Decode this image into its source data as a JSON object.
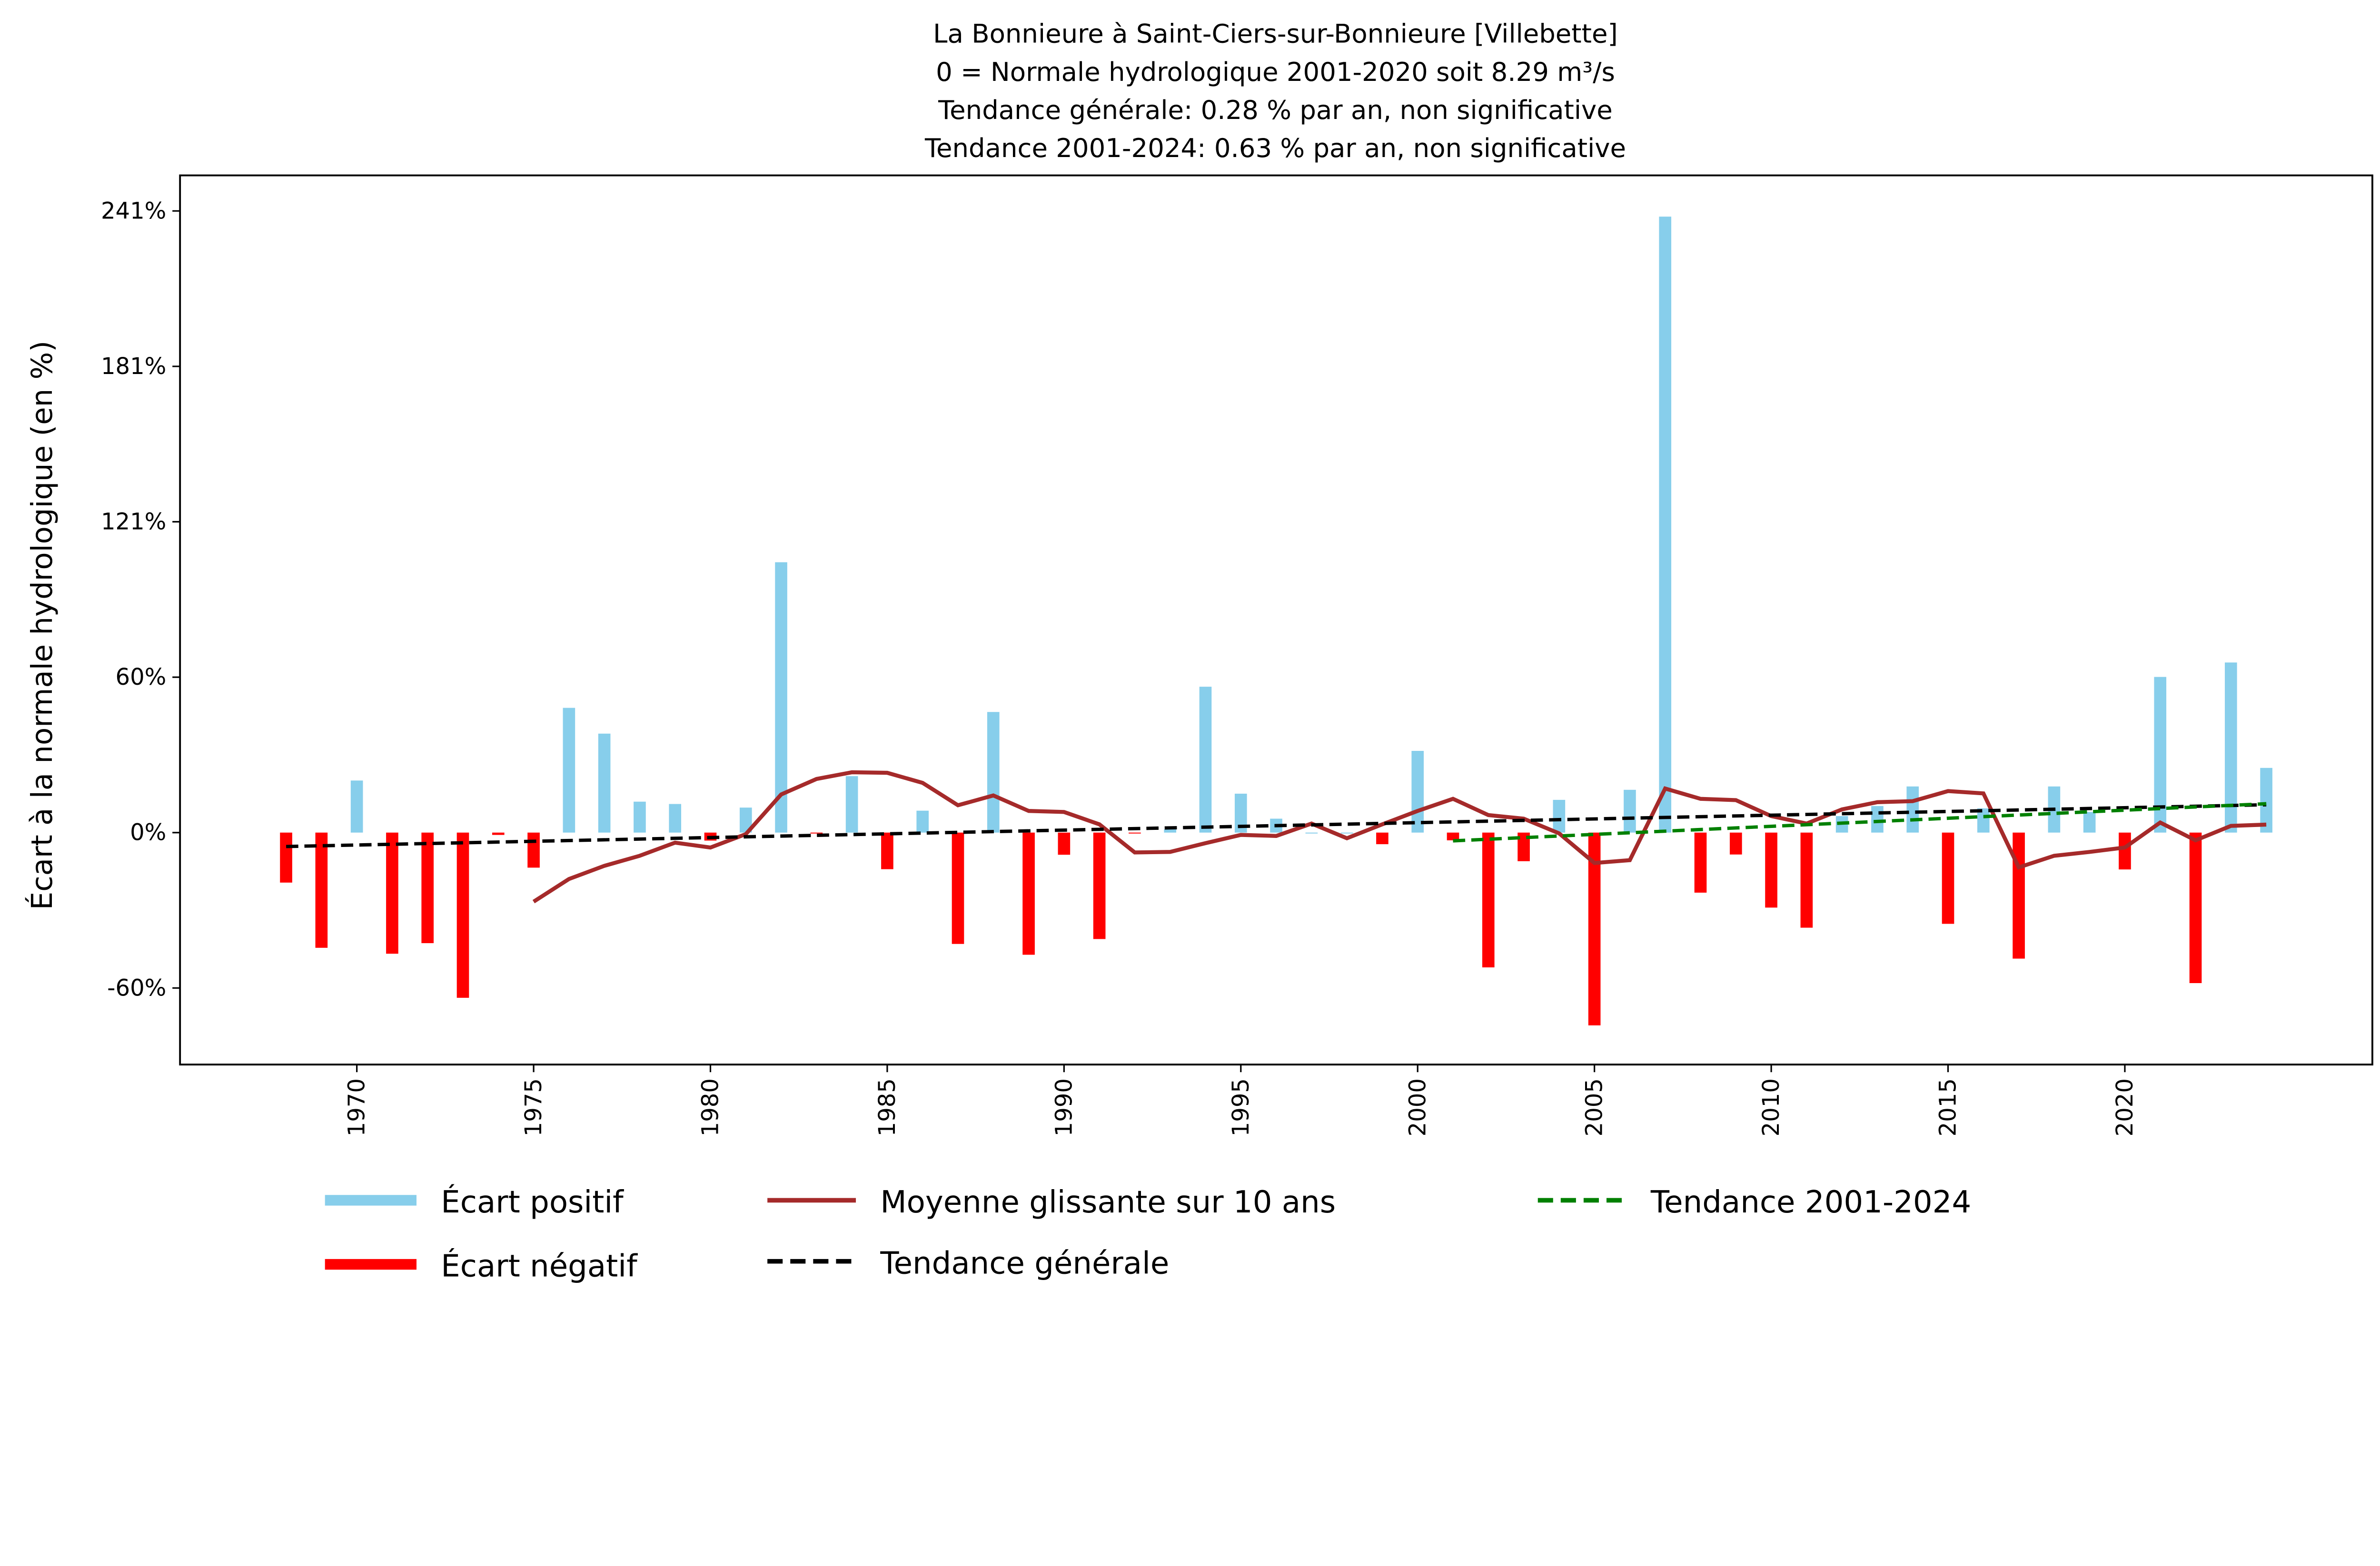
{
  "chart_data": {
    "type": "bar",
    "title_lines": [
      "La Bonnieure à Saint-Ciers-sur-Bonnieure [Villebette]",
      "0 = Normale hydrologique 2001-2020 soit 8.29 m³/s",
      "Tendance générale: 0.28 % par an, non significative",
      "Tendance 2001-2024: 0.63 % par an, non significative"
    ],
    "xlabel": "",
    "ylabel": "Écart à la normale hydrologique (en %)",
    "ylim": [
      -90,
      255
    ],
    "xlim": [
      1965,
      2027
    ],
    "yticks": [
      {
        "value": 241.2,
        "label": "241%"
      },
      {
        "value": 180.9,
        "label": "181%"
      },
      {
        "value": 120.6,
        "label": "121%"
      },
      {
        "value": 60.3,
        "label": "60%"
      },
      {
        "value": 0,
        "label": "0%"
      },
      {
        "value": -60.3,
        "label": "-60%"
      }
    ],
    "xticks": [
      1970,
      1975,
      1980,
      1985,
      1990,
      1995,
      2000,
      2005,
      2010,
      2015,
      2020
    ],
    "years": [
      1968,
      1969,
      1970,
      1971,
      1972,
      1973,
      1974,
      1975,
      1976,
      1977,
      1978,
      1979,
      1980,
      1981,
      1982,
      1983,
      1984,
      1985,
      1986,
      1987,
      1988,
      1989,
      1990,
      1991,
      1992,
      1993,
      1994,
      1995,
      1996,
      1997,
      1998,
      1999,
      2000,
      2001,
      2002,
      2003,
      2004,
      2005,
      2006,
      2007,
      2008,
      2009,
      2010,
      2011,
      2012,
      2013,
      2014,
      2015,
      2016,
      2017,
      2018,
      2019,
      2020,
      2021,
      2022,
      2023,
      2024
    ],
    "ecart": [
      -19.4,
      -44.7,
      20.2,
      -47.0,
      -42.9,
      -64.1,
      -0.9,
      -13.6,
      48.4,
      38.4,
      12.0,
      11.1,
      -3.1,
      9.7,
      104.9,
      -0.3,
      21.9,
      -14.2,
      8.5,
      -43.2,
      46.8,
      -47.4,
      -8.6,
      -41.3,
      -0.3,
      1.3,
      56.6,
      15.1,
      5.4,
      0,
      0,
      -4.5,
      31.7,
      -3.0,
      -52.3,
      -11.1,
      12.7,
      -74.8,
      16.6,
      239,
      -23.3,
      -8.5,
      -29.1,
      -36.9,
      6.4,
      10.3,
      17.9,
      -35.4,
      9.4,
      -48.9,
      17.9,
      8.0,
      -14.3,
      60.4,
      -58.4,
      66.0,
      25.1
    ],
    "moving_average": {
      "name": "Moyenne glissante sur 10 ans",
      "start_year": 1975,
      "values": [
        -26.8,
        -18.0,
        -12.9,
        -9.0,
        -3.9,
        -5.8,
        -0.6,
        14.8,
        20.8,
        23.4,
        23.2,
        19.3,
        10.6,
        14.4,
        8.4,
        8.0,
        3.2,
        -7.7,
        -7.5,
        -4.1,
        -0.9,
        -1.3,
        3.5,
        -2.2,
        3.2,
        8.4,
        13.1,
        6.8,
        5.4,
        -0.3,
        -11.8,
        -10.7,
        17.1,
        13.1,
        12.6,
        6.4,
        3.5,
        9.0,
        11.8,
        12.2,
        16.1,
        15.2,
        -13.5,
        -9.0,
        -7.5,
        -5.8,
        3.9,
        -3.0,
        2.6,
        3.1
      ]
    },
    "trend_general": {
      "name": "Tendance générale",
      "x": [
        1968,
        2024
      ],
      "y": [
        -5.4,
        10.8
      ]
    },
    "trend_recent": {
      "name": "Tendance 2001-2024",
      "x": [
        2001,
        2024
      ],
      "y": [
        -3.2,
        11.2
      ]
    },
    "legend": {
      "placement": "bottom",
      "positive": "Écart positif",
      "negative": "Écart négatif",
      "moving": "Moyenne glissante sur 10 ans",
      "general": "Tendance générale",
      "recent": "Tendance 2001-2024"
    },
    "colors": {
      "positive": "#87CEEB",
      "negative": "#FF0000",
      "moving": "#A52A2A",
      "general": "#000000",
      "recent": "#008000"
    }
  }
}
